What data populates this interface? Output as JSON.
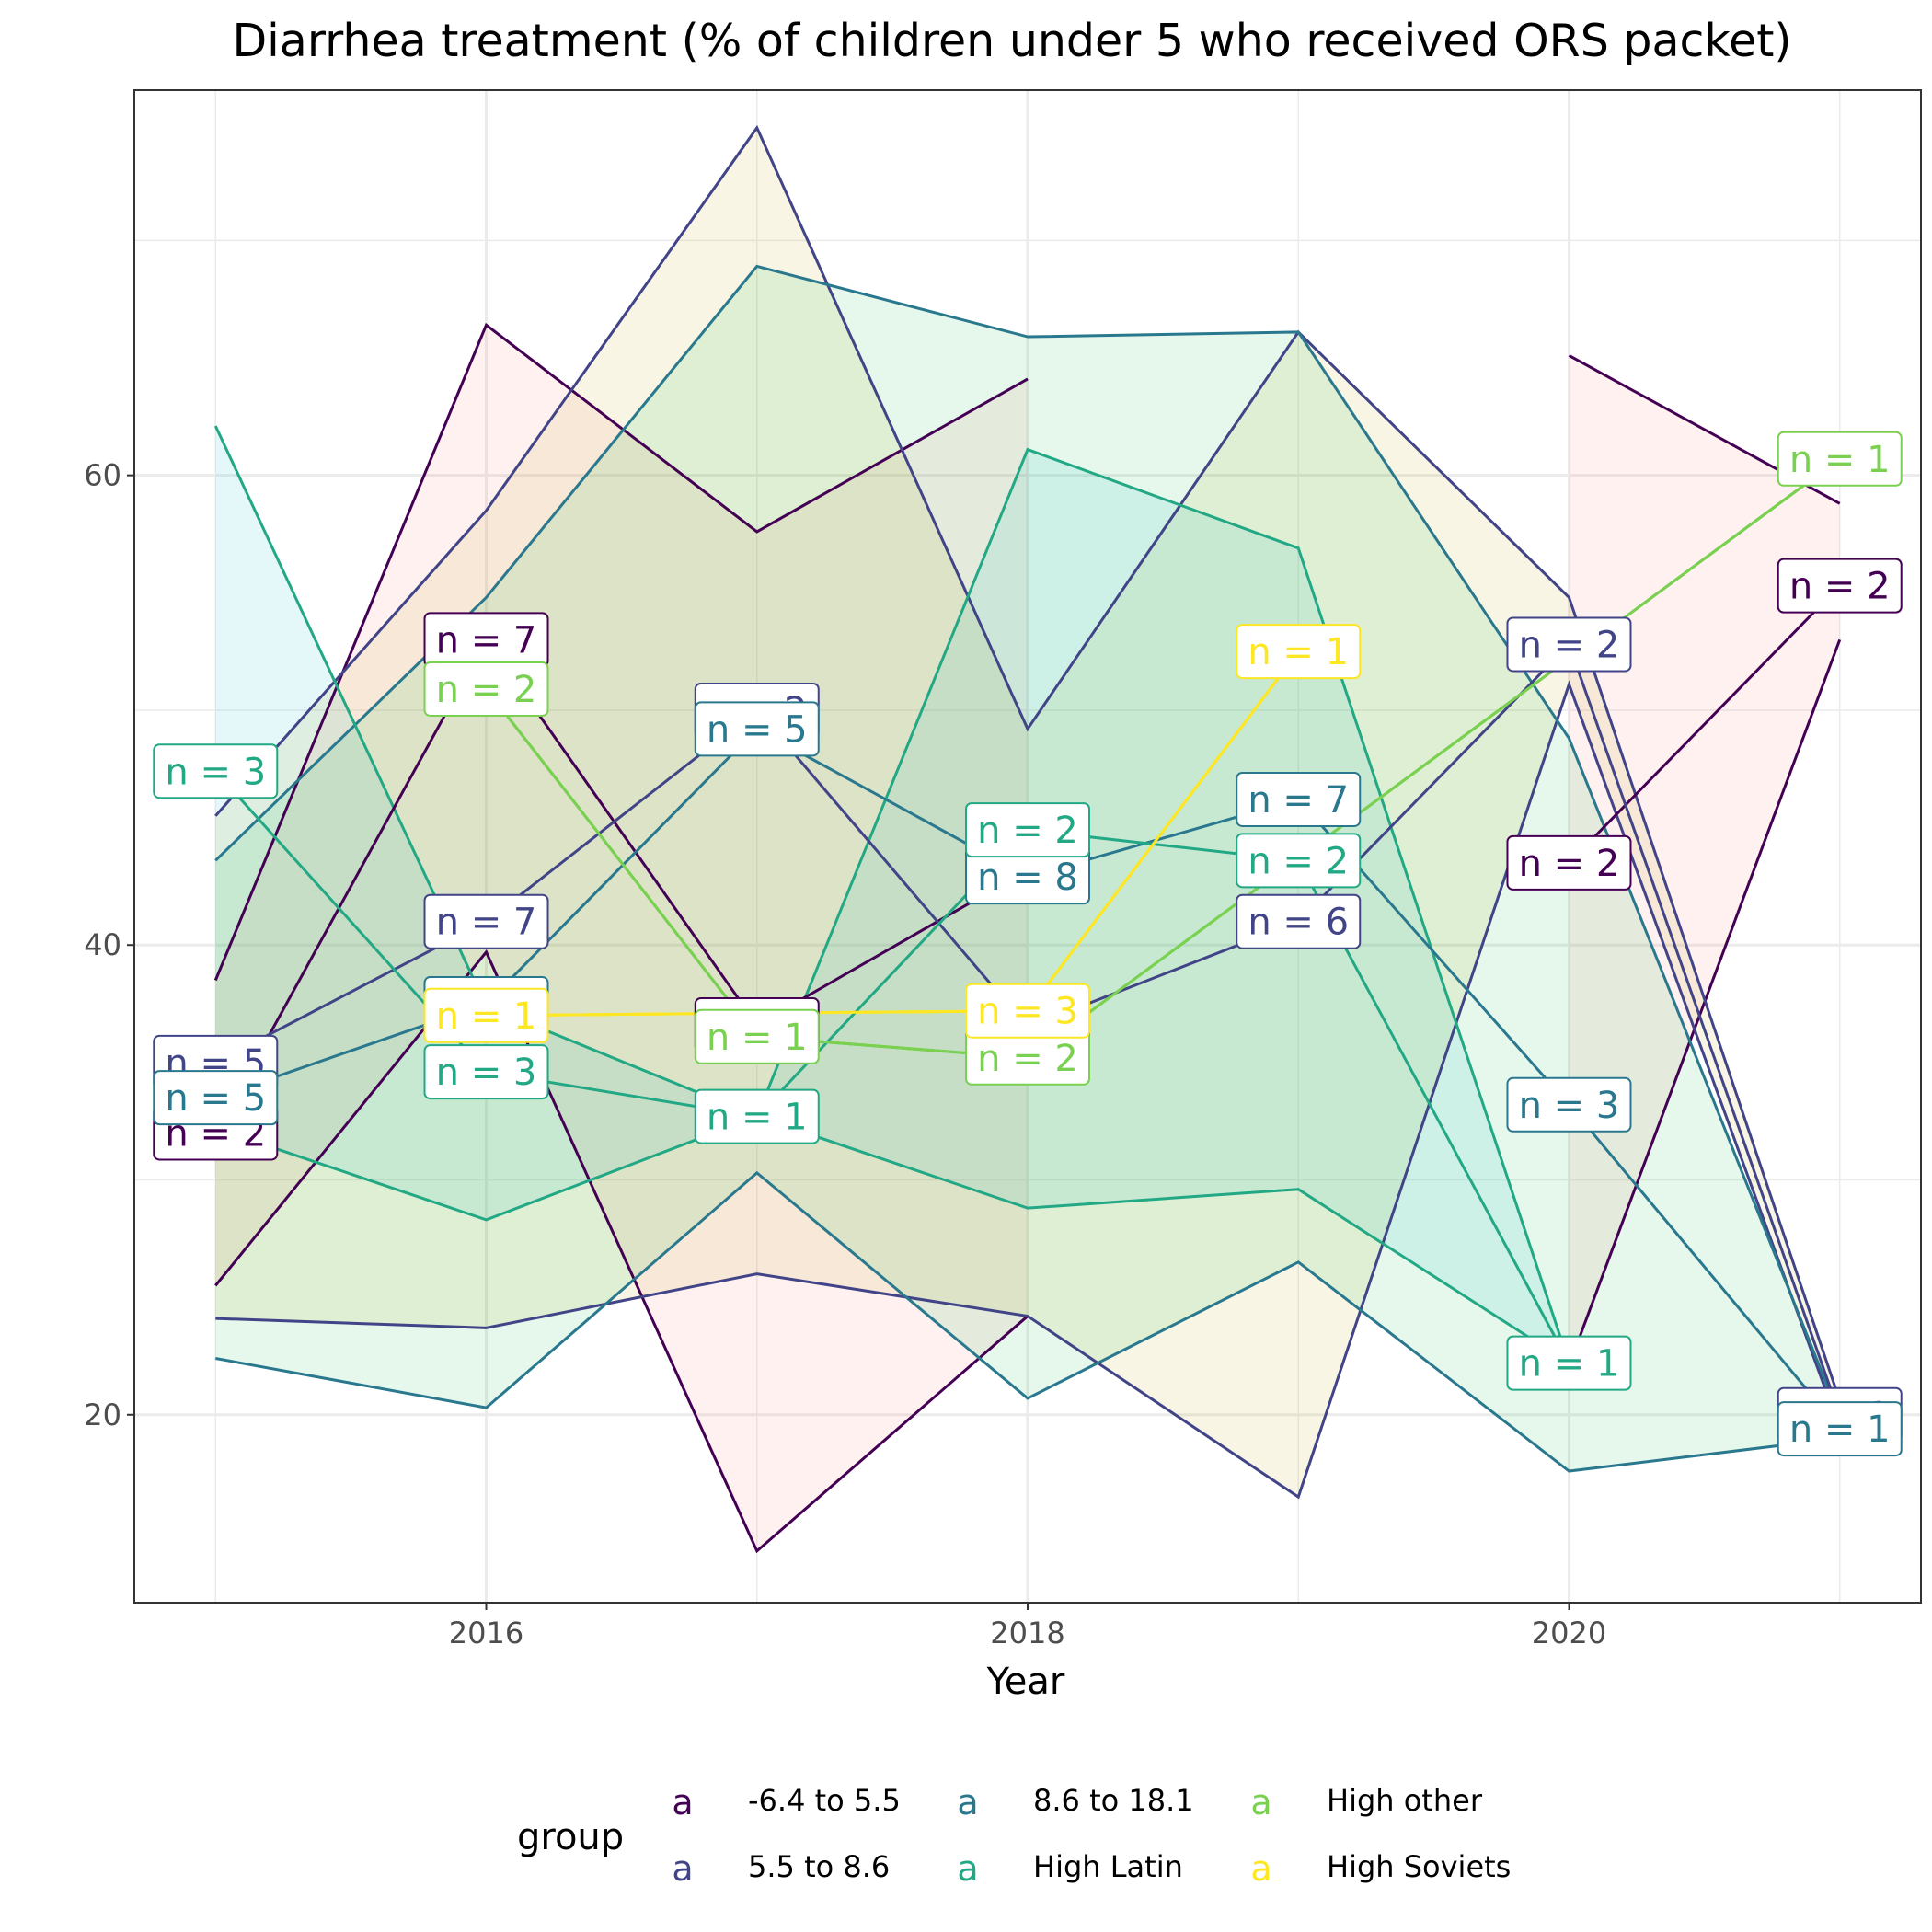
{
  "chart_data": {
    "type": "line",
    "title": "Diarrhea treatment (% of children under 5 who received ORS packet)",
    "xlabel": "Year",
    "ylabel": "",
    "xlim": [
      2014.7,
      2021.3
    ],
    "ylim": [
      12,
      76.4
    ],
    "x_ticks": [
      2016,
      2018,
      2020
    ],
    "y_ticks": [
      20,
      40,
      60
    ],
    "grid": true,
    "legend": {
      "title": "group",
      "position": "bottom",
      "key_glyph": "a",
      "entries": [
        "-6.4 to 5.5",
        "5.5 to 8.6",
        "8.6 to 18.1",
        "High Latin",
        "High other",
        "High Soviets"
      ]
    },
    "series": [
      {
        "name": "-6.4 to 5.5",
        "color": "#440154",
        "ribbon_color": "#F8766D",
        "segments": [
          {
            "points": [
              [
                2015,
                32
              ],
              [
                2016,
                53
              ],
              [
                2017,
                36.6
              ],
              [
                2018,
                43.2
              ]
            ],
            "upper": [
              [
                2015,
                38.5
              ],
              [
                2016,
                66.4
              ],
              [
                2017,
                57.6
              ],
              [
                2018,
                64.1
              ]
            ],
            "lower": [
              [
                2015,
                25.5
              ],
              [
                2016,
                39.7
              ],
              [
                2017,
                14.2
              ],
              [
                2018,
                24.2
              ]
            ],
            "labels": [
              "n = 2",
              "n = 7",
              "n = 1",
              "n = 2"
            ]
          },
          {
            "points": [
              [
                2020,
                43.5
              ],
              [
                2021,
                55.3
              ]
            ],
            "upper": [
              [
                2020,
                65.1
              ],
              [
                2021,
                58.8
              ]
            ],
            "lower": [
              [
                2020,
                22.1
              ],
              [
                2021,
                53
              ]
            ],
            "labels": [
              "n = 2",
              "n = 2"
            ]
          }
        ]
      },
      {
        "name": "5.5 to 8.6",
        "color": "#414487",
        "ribbon_color": "#B79F00",
        "segments": [
          {
            "points": [
              [
                2015,
                35
              ],
              [
                2016,
                41
              ],
              [
                2017,
                50
              ],
              [
                2018,
                36.5
              ],
              [
                2019,
                41
              ],
              [
                2020,
                52.8
              ],
              [
                2021,
                20
              ]
            ],
            "upper": [
              [
                2015,
                45.5
              ],
              [
                2016,
                58.5
              ],
              [
                2017,
                74.8
              ],
              [
                2018,
                49.2
              ],
              [
                2019,
                66.1
              ],
              [
                2020,
                54.8
              ],
              [
                2021,
                20.6
              ]
            ],
            "lower": [
              [
                2015,
                24.1
              ],
              [
                2016,
                23.7
              ],
              [
                2017,
                26
              ],
              [
                2018,
                24.2
              ],
              [
                2019,
                16.5
              ],
              [
                2020,
                51.1
              ],
              [
                2021,
                19.4
              ]
            ],
            "labels": [
              "n = 5",
              "n = 7",
              "n = 2",
              "n = 5",
              "n = 6",
              "n = 2",
              "n = 1"
            ]
          }
        ]
      },
      {
        "name": "8.6 to 18.1",
        "color": "#2A788E",
        "ribbon_color": "#00BA38",
        "segments": [
          {
            "points": [
              [
                2015,
                33.5
              ],
              [
                2016,
                37.5
              ],
              [
                2017,
                49.2
              ],
              [
                2018,
                42.9
              ],
              [
                2019,
                46.2
              ],
              [
                2020,
                33.2
              ],
              [
                2021,
                19.4
              ]
            ],
            "upper": [
              [
                2015,
                43.6
              ],
              [
                2016,
                54.8
              ],
              [
                2017,
                68.9
              ],
              [
                2018,
                65.9
              ],
              [
                2019,
                66.1
              ],
              [
                2020,
                48.8
              ],
              [
                2021,
                19.9
              ]
            ],
            "lower": [
              [
                2015,
                22.4
              ],
              [
                2016,
                20.3
              ],
              [
                2017,
                30.3
              ],
              [
                2018,
                20.7
              ],
              [
                2019,
                26.5
              ],
              [
                2020,
                17.6
              ],
              [
                2021,
                19
              ]
            ],
            "labels": [
              "n = 5",
              "n = 5",
              "n = 5",
              "n = 8",
              "n = 7",
              "n = 3",
              "n = 1"
            ]
          }
        ]
      },
      {
        "name": "High Latin",
        "color": "#22A884",
        "ribbon_color": "#00BFC4",
        "segments": [
          {
            "points": [
              [
                2015,
                47.4
              ],
              [
                2016,
                34.6
              ],
              [
                2017,
                32.7
              ],
              [
                2018,
                44.9
              ],
              [
                2019,
                43.6
              ],
              [
                2020,
                22.2
              ]
            ],
            "upper": [
              [
                2015,
                62.1
              ],
              [
                2016,
                37.4
              ],
              [
                2017,
                32.7
              ],
              [
                2018,
                61.1
              ],
              [
                2019,
                56.9
              ],
              [
                2020,
                22.2
              ]
            ],
            "lower": [
              [
                2015,
                32.2
              ],
              [
                2016,
                28.3
              ],
              [
                2017,
                32.7
              ],
              [
                2018,
                28.8
              ],
              [
                2019,
                29.6
              ],
              [
                2020,
                22.2
              ]
            ],
            "labels": [
              "n = 3",
              "n = 3",
              "n = 1",
              "n = 2",
              "n = 2",
              "n = 1"
            ]
          }
        ]
      },
      {
        "name": "High other",
        "color": "#7AD151",
        "ribbon_color": "#619CFF",
        "segments": [
          {
            "points": [
              [
                2016,
                50.9
              ],
              [
                2017,
                36.1
              ],
              [
                2018,
                35.2
              ],
              [
                2021,
                60.7
              ]
            ],
            "upper": [
              [
                2016,
                50.9
              ],
              [
                2017,
                36.1
              ],
              [
                2018,
                35.2
              ],
              [
                2021,
                60.7
              ]
            ],
            "lower": [
              [
                2016,
                50.9
              ],
              [
                2017,
                36.1
              ],
              [
                2018,
                35.2
              ],
              [
                2021,
                60.7
              ]
            ],
            "labels": [
              "n = 2",
              "n = 1",
              "n = 2",
              "n = 1"
            ]
          }
        ]
      },
      {
        "name": "High Soviets",
        "color": "#FDE725",
        "ribbon_color": "#F564E3",
        "segments": [
          {
            "points": [
              [
                2016,
                37
              ],
              [
                2018,
                37.2
              ],
              [
                2019,
                52.5
              ]
            ],
            "upper": [
              [
                2016,
                37
              ],
              [
                2018,
                37.2
              ],
              [
                2019,
                52.5
              ]
            ],
            "lower": [
              [
                2016,
                37
              ],
              [
                2018,
                37.2
              ],
              [
                2019,
                52.5
              ]
            ],
            "labels": [
              "n = 1",
              "n = 3",
              "n = 1"
            ]
          }
        ]
      }
    ]
  }
}
